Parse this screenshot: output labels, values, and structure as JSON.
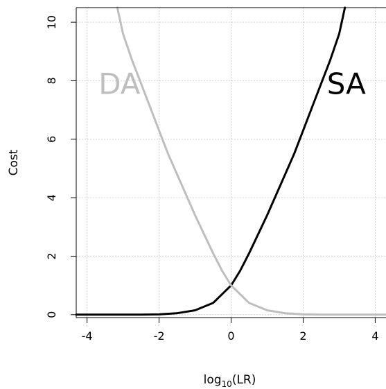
{
  "chart_data": {
    "type": "line",
    "xlabel_base": "log",
    "xlabel_sub": "10",
    "xlabel_rest": "(LR)",
    "ylabel": "Cost",
    "xlim": [
      -4.3,
      4.3
    ],
    "ylim": [
      -0.1,
      10.5
    ],
    "x_ticks": [
      -4,
      -2,
      0,
      2,
      4
    ],
    "x_tick_labels": [
      "-4",
      "-2",
      "0",
      "2",
      "4"
    ],
    "y_ticks": [
      0,
      2,
      4,
      6,
      8,
      10
    ],
    "y_tick_labels": [
      "0",
      "2",
      "4",
      "6",
      "8",
      "10"
    ],
    "grid": true,
    "series": [
      {
        "name": "SA",
        "color": "#000000",
        "x": [
          -4.3,
          -3.5,
          -3.0,
          -2.5,
          -2.0,
          -1.5,
          -1.0,
          -0.5,
          0.0,
          0.25,
          0.5,
          0.75,
          1.0,
          1.25,
          1.5,
          1.75,
          2.0,
          2.25,
          2.5,
          2.75,
          3.0,
          3.16
        ],
        "y": [
          0.0,
          0.0,
          0.0,
          0.0,
          0.01,
          0.05,
          0.15,
          0.4,
          1.0,
          1.5,
          2.1,
          2.75,
          3.4,
          4.1,
          4.8,
          5.5,
          6.3,
          7.1,
          7.9,
          8.7,
          9.6,
          10.5
        ]
      },
      {
        "name": "DA",
        "color": "#bebebe",
        "x": [
          -3.16,
          -3.0,
          -2.75,
          -2.5,
          -2.25,
          -2.0,
          -1.75,
          -1.5,
          -1.25,
          -1.0,
          -0.75,
          -0.5,
          -0.25,
          0.0,
          0.5,
          1.0,
          1.5,
          2.0,
          2.5,
          3.0,
          3.5,
          4.3
        ],
        "y": [
          10.5,
          9.6,
          8.7,
          7.9,
          7.1,
          6.3,
          5.5,
          4.8,
          4.1,
          3.4,
          2.75,
          2.1,
          1.5,
          1.0,
          0.4,
          0.15,
          0.05,
          0.01,
          0.0,
          0.0,
          0.0,
          0.0
        ]
      }
    ],
    "annotations": [
      {
        "text": "DA",
        "x": -3.1,
        "y": 7.9,
        "color": "#bebebe"
      },
      {
        "text": "SA",
        "x": 3.2,
        "y": 7.9,
        "color": "#000000"
      }
    ]
  }
}
